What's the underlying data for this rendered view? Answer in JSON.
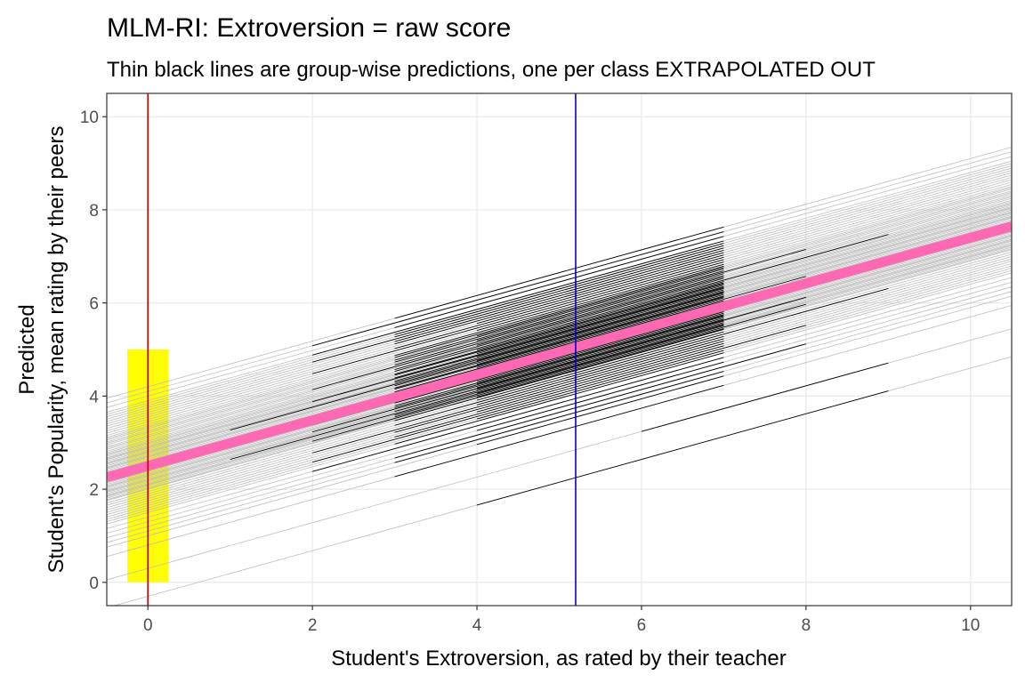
{
  "chart_data": {
    "type": "line",
    "title": "MLM-RI: Extroversion = raw score",
    "subtitle": "Thin black lines are group-wise predictions, one per class EXTRAPOLATED OUT",
    "xlabel": "Student's Extroversion, as rated by their teacher",
    "ylabel_lines": [
      "Predicted",
      "Student's Popularity, mean rating by their peers"
    ],
    "xlim": [
      -0.5,
      10.5
    ],
    "ylim": [
      -0.5,
      10.5
    ],
    "x_ticks": [
      0,
      2,
      4,
      6,
      8,
      10
    ],
    "y_ticks": [
      0,
      2,
      4,
      6,
      8,
      10
    ],
    "grid": true,
    "fixed_line": {
      "intercept": 2.5,
      "slope": 0.49,
      "color": "#FF69B4"
    },
    "reference_lines": [
      {
        "axis": "x",
        "value": 0,
        "color": "#CC0000"
      },
      {
        "axis": "x",
        "value": 5.2,
        "color": "#0000CC"
      }
    ],
    "highlight_band": {
      "x": [
        -0.25,
        0.25
      ],
      "y": [
        0,
        5
      ],
      "color": "#FFFF00"
    },
    "extrapolated_color": "#BDBDBD",
    "observed_color": "#000000",
    "group_intercepts": [
      -0.3,
      0.3,
      0.8,
      1.0,
      1.1,
      1.2,
      1.3,
      1.4,
      1.5,
      1.55,
      1.6,
      1.65,
      1.7,
      1.75,
      1.8,
      1.85,
      1.9,
      1.95,
      2.0,
      2.02,
      2.05,
      2.08,
      2.1,
      2.12,
      2.15,
      2.18,
      2.2,
      2.22,
      2.25,
      2.28,
      2.3,
      2.32,
      2.35,
      2.38,
      2.4,
      2.42,
      2.45,
      2.48,
      2.5,
      2.52,
      2.55,
      2.58,
      2.6,
      2.62,
      2.65,
      2.68,
      2.7,
      2.72,
      2.75,
      2.78,
      2.8,
      2.82,
      2.85,
      2.88,
      2.9,
      2.92,
      2.95,
      2.98,
      3.0,
      3.03,
      3.06,
      3.1,
      3.13,
      3.16,
      3.2,
      3.23,
      3.26,
      3.3,
      3.33,
      3.36,
      3.4,
      3.45,
      3.5,
      3.55,
      3.6,
      3.65,
      3.7,
      3.75,
      3.8,
      3.85,
      3.9,
      4.0,
      4.1,
      4.2
    ],
    "group_x_min": [
      4,
      6,
      3,
      4,
      3,
      3,
      4,
      2,
      3,
      4,
      2,
      3,
      4,
      3,
      2,
      4,
      3,
      4,
      3,
      4,
      2,
      3,
      4,
      3,
      1,
      4,
      3,
      4,
      2,
      3,
      4,
      3,
      4,
      3,
      2,
      4,
      3,
      4,
      3,
      4,
      3,
      2,
      4,
      3,
      4,
      3,
      3,
      4,
      3,
      1,
      4,
      3,
      3,
      4,
      2,
      3,
      4,
      3,
      3,
      4,
      3,
      3,
      4,
      2,
      3,
      4,
      3,
      3,
      4,
      3,
      3,
      4,
      2,
      3,
      4,
      3,
      3,
      2,
      3,
      3,
      2,
      3,
      2,
      3
    ],
    "group_x_max": [
      9,
      9,
      7,
      7,
      7,
      8,
      7,
      7,
      7,
      7,
      8,
      7,
      7,
      7,
      7,
      7,
      9,
      7,
      7,
      7,
      8,
      7,
      7,
      7,
      7,
      7,
      8,
      7,
      7,
      7,
      7,
      7,
      7,
      7,
      7,
      7,
      7,
      7,
      8,
      7,
      7,
      7,
      7,
      7,
      8,
      7,
      7,
      7,
      7,
      7,
      7,
      7,
      7,
      7,
      7,
      7,
      7,
      7,
      7,
      7,
      9,
      7,
      7,
      7,
      7,
      8,
      7,
      7,
      7,
      7,
      7,
      7,
      7,
      7,
      7,
      7,
      7,
      7,
      7,
      7,
      7,
      7,
      7,
      7
    ]
  }
}
